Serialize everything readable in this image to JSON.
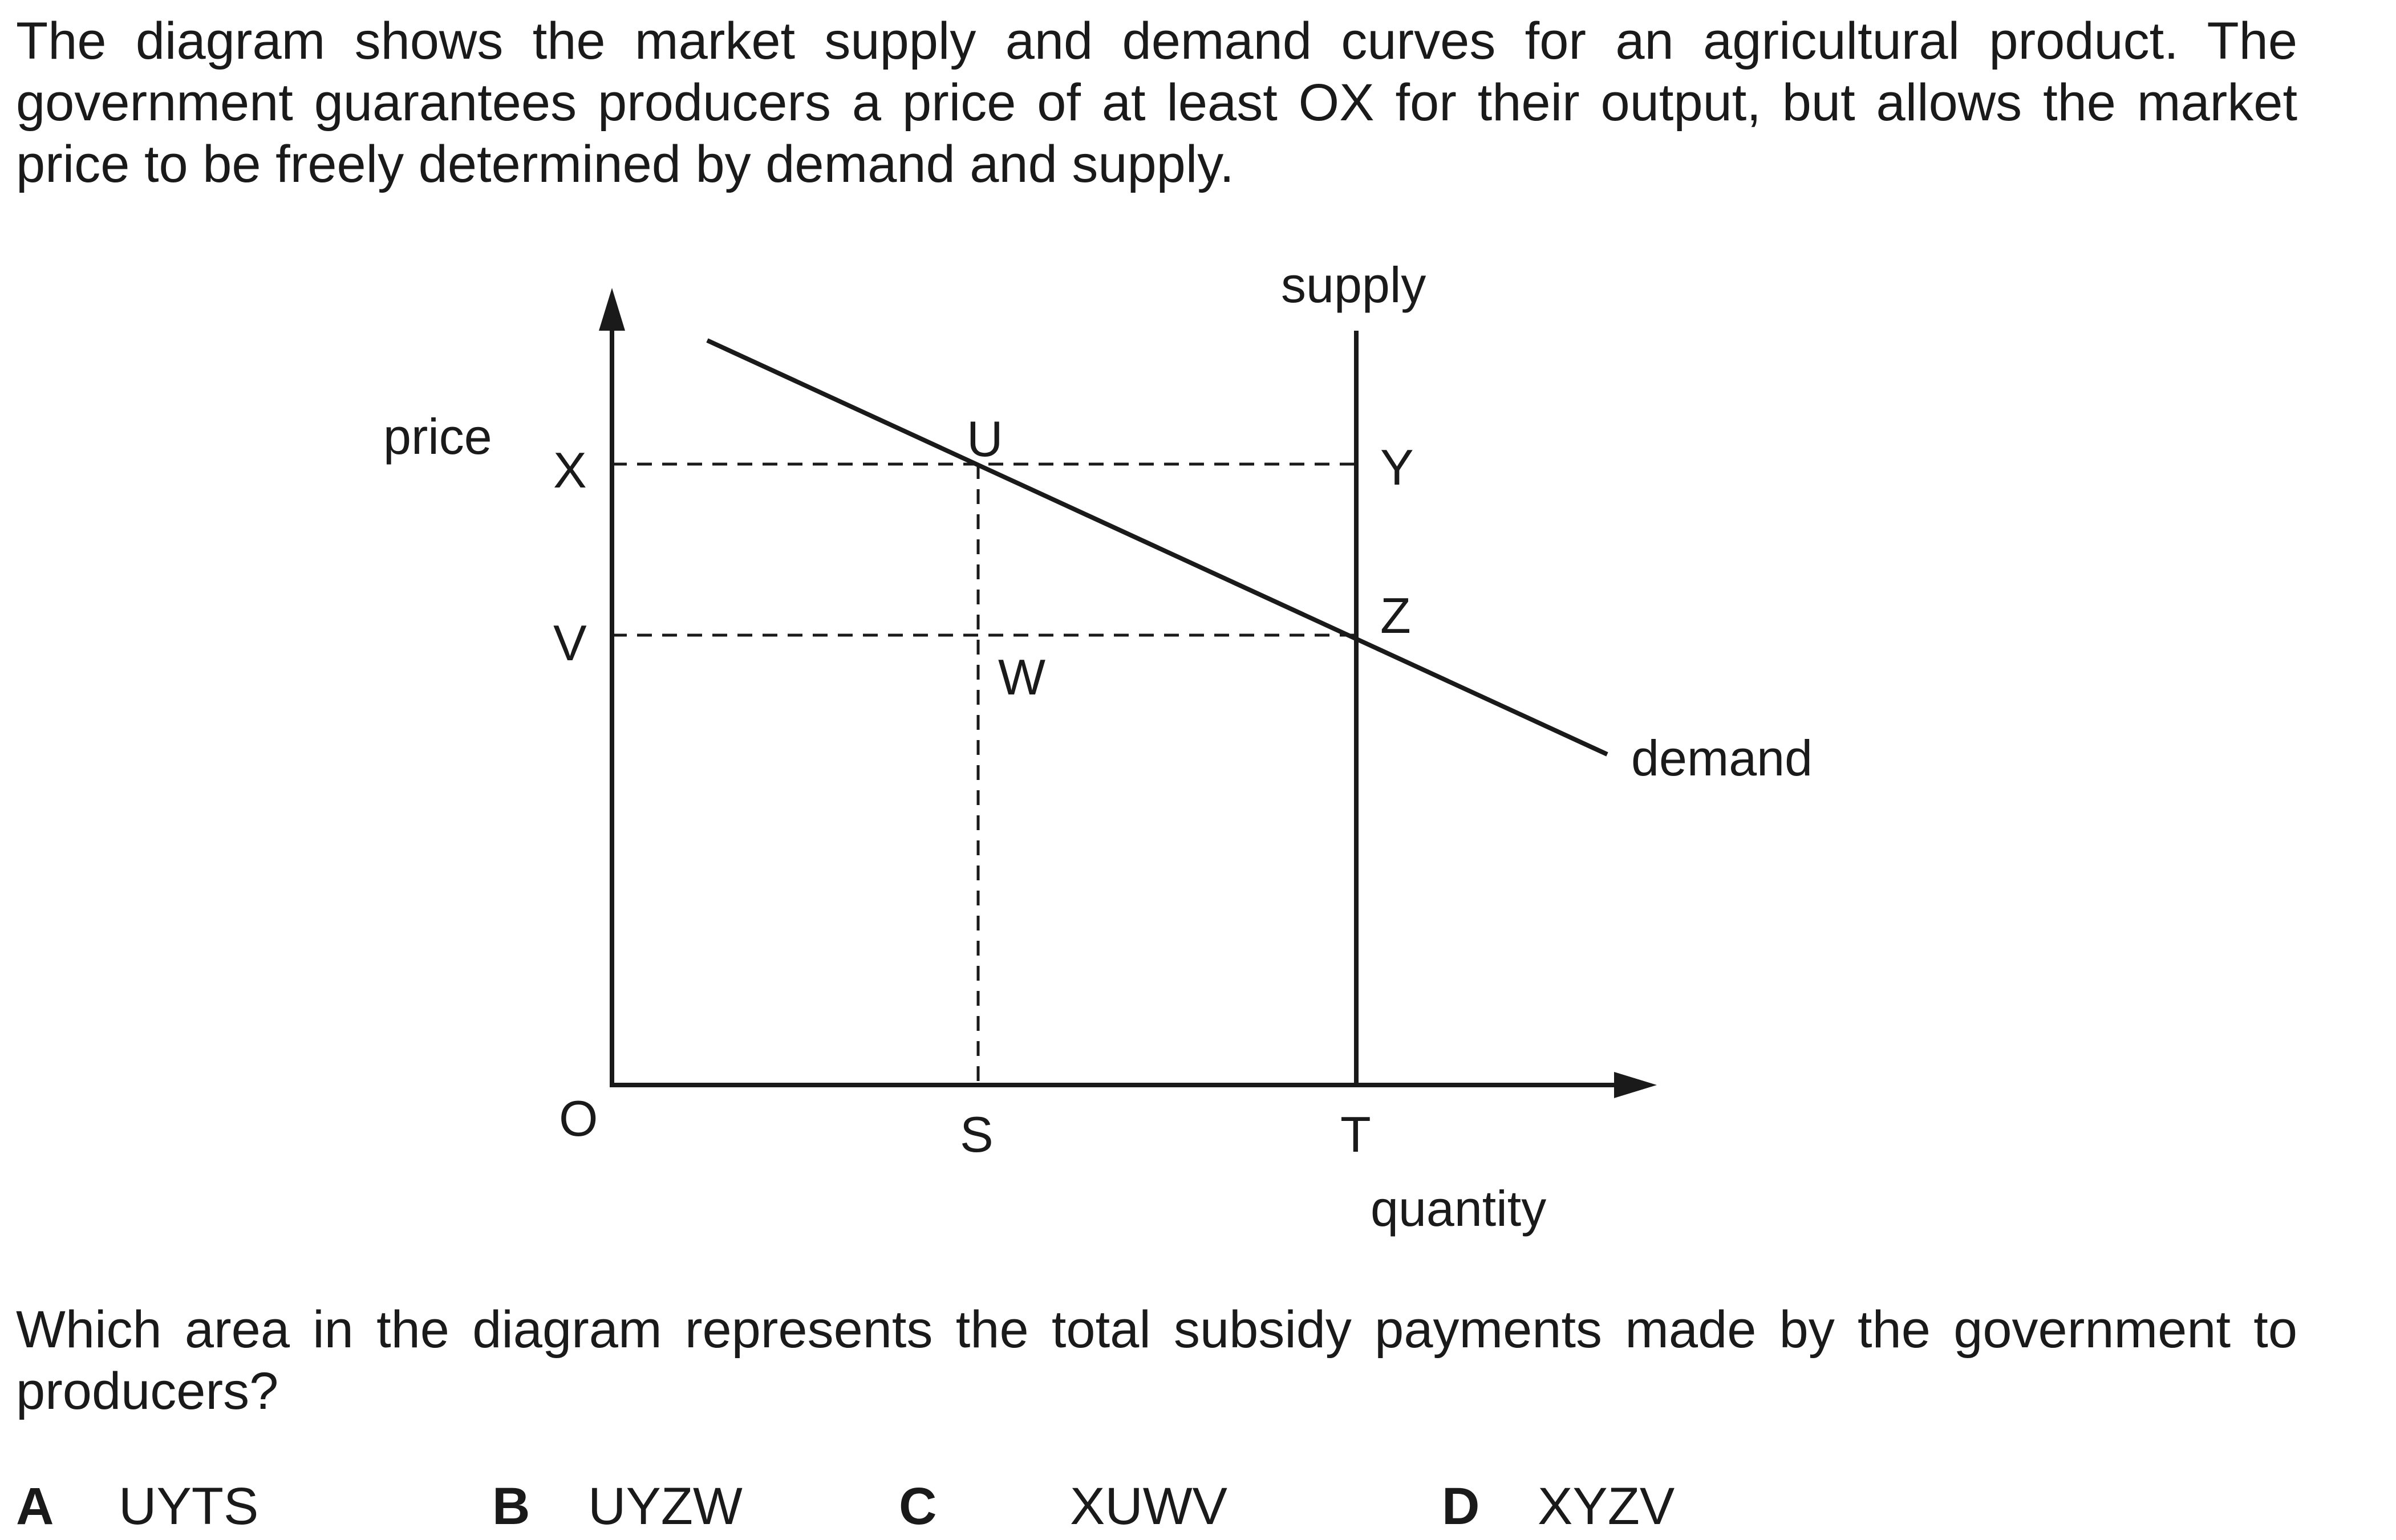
{
  "stem": {
    "line1": "The diagram shows the market supply and demand curves for an agricultural product. The",
    "line2": "government guarantees producers a price of at least OX for their output, but allows the market",
    "line3": "price to be freely determined by demand and supply."
  },
  "diagram": {
    "y_axis_label": "price",
    "x_axis_label": "quantity",
    "supply_label": "supply",
    "demand_label": "demand",
    "points": {
      "origin": "O",
      "x": "X",
      "v": "V",
      "u": "U",
      "y": "Y",
      "z": "Z",
      "w": "W",
      "s": "S",
      "t": "T"
    }
  },
  "question": {
    "line1": "Which area in the diagram represents the total subsidy payments made by the government to",
    "line2": "producers?"
  },
  "options": [
    {
      "letter": "A",
      "answer": "UYTS"
    },
    {
      "letter": "B",
      "answer": "UYZW"
    },
    {
      "letter": "C",
      "answer": "XUWV"
    },
    {
      "letter": "D",
      "answer": "XYZV"
    }
  ]
}
